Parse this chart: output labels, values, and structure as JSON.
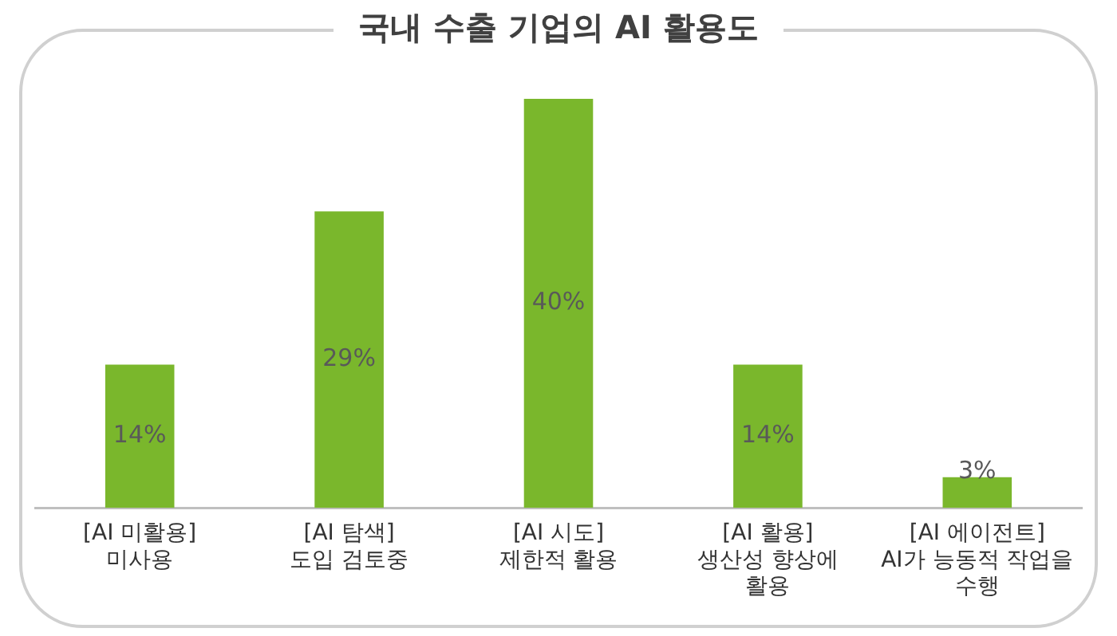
{
  "chart_data": {
    "type": "bar",
    "title": "국내 수출 기업의 AI 활용도",
    "categories": [
      "[AI 미활용]\n미사용",
      "[AI 탐색]\n도입 검토중",
      "[AI 시도]\n제한적 활용",
      "[AI 활용]\n생산성 향상에\n활용",
      "[AI 에이전트]\nAI가 능동적 작업을\n수행"
    ],
    "values": [
      14,
      29,
      40,
      14,
      3
    ],
    "value_labels": [
      "14%",
      "29%",
      "40%",
      "14%",
      "3%"
    ],
    "color": "#7ab72c",
    "tick_labels": "x"
  }
}
